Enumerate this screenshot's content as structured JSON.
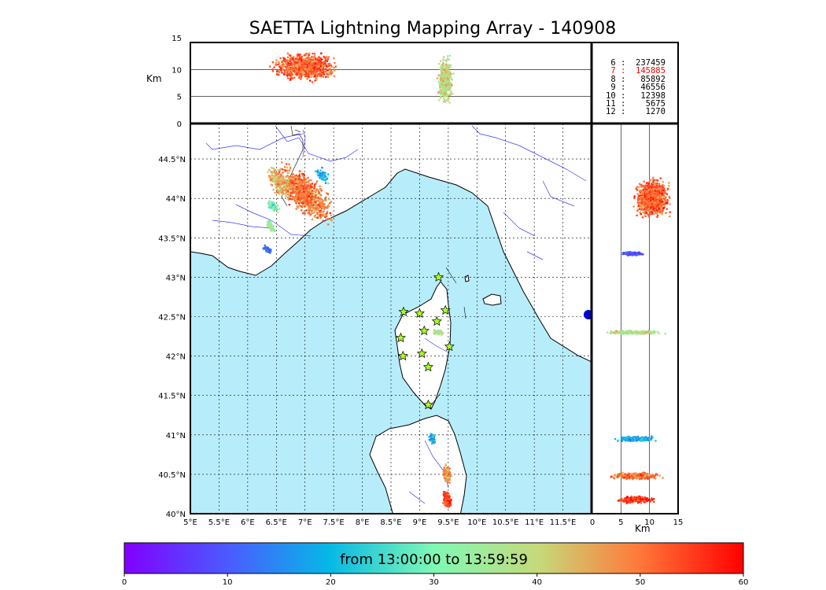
{
  "title": "SAETTA Lightning Mapping Array - 140908",
  "colors": {
    "sea": "#b7edfb",
    "land": "#ffffff",
    "river": "#3a3aff",
    "star_fill": "#aaff22",
    "highlight_stat": "#ff0000"
  },
  "stats": [
    {
      "k": "6",
      "v": "237459",
      "highlight": false
    },
    {
      "k": "7",
      "v": "145885",
      "highlight": true
    },
    {
      "k": "8",
      "v": "85892",
      "highlight": false
    },
    {
      "k": "9",
      "v": "46556",
      "highlight": false
    },
    {
      "k": "10",
      "v": "12398",
      "highlight": false
    },
    {
      "k": "11",
      "v": "5675",
      "highlight": false
    },
    {
      "k": "12",
      "v": "1270",
      "highlight": false
    }
  ],
  "chart_data": [
    {
      "type": "scatter",
      "name": "plan-view",
      "xlim": [
        5.0,
        12.0
      ],
      "ylim": [
        40.0,
        44.95
      ],
      "x_ticks": [
        5.0,
        5.5,
        6.0,
        6.5,
        7.0,
        7.5,
        8.0,
        8.5,
        9.0,
        9.5,
        10.0,
        10.5,
        11.0,
        11.5
      ],
      "x_tick_labels": [
        "5°E",
        "5.5°E",
        "6°E",
        "6.5°E",
        "7°E",
        "7.5°E",
        "8°E",
        "8.5°E",
        "9°E",
        "9.5°E",
        "10°E",
        "10.5°E",
        "11°E",
        "11.5°E"
      ],
      "y_ticks": [
        40.0,
        40.5,
        41.0,
        41.5,
        42.0,
        42.5,
        43.0,
        43.5,
        44.0,
        44.5
      ],
      "y_tick_labels": [
        "40°N",
        "40.5°N",
        "41°N",
        "41.5°N",
        "42°N",
        "42.5°N",
        "43°N",
        "43.5°N",
        "44°N",
        "44.5°N"
      ],
      "grid": true,
      "sensors": [
        {
          "lon": 9.33,
          "lat": 43.0
        },
        {
          "lon": 8.72,
          "lat": 42.56
        },
        {
          "lon": 9.0,
          "lat": 42.54
        },
        {
          "lon": 9.45,
          "lat": 42.58
        },
        {
          "lon": 9.3,
          "lat": 42.44
        },
        {
          "lon": 9.08,
          "lat": 42.32
        },
        {
          "lon": 8.67,
          "lat": 42.23
        },
        {
          "lon": 9.52,
          "lat": 42.12
        },
        {
          "lon": 9.04,
          "lat": 42.03
        },
        {
          "lon": 8.71,
          "lat": 42.0
        },
        {
          "lon": 9.15,
          "lat": 41.86
        },
        {
          "lon": 9.15,
          "lat": 41.38
        }
      ],
      "clusters": [
        {
          "lon": 7.0,
          "lat": 44.05,
          "span_lon": 0.55,
          "span_lat": 0.3,
          "time_min": 50,
          "n": 900
        },
        {
          "lon": 6.55,
          "lat": 44.2,
          "span_lon": 0.25,
          "span_lat": 0.2,
          "time_min": 45,
          "n": 200
        },
        {
          "lon": 6.45,
          "lat": 43.9,
          "span_lon": 0.12,
          "span_lat": 0.08,
          "time_min": 30,
          "n": 90
        },
        {
          "lon": 6.4,
          "lat": 43.65,
          "span_lon": 0.1,
          "span_lat": 0.08,
          "time_min": 35,
          "n": 60
        },
        {
          "lon": 6.35,
          "lat": 43.35,
          "span_lon": 0.1,
          "span_lat": 0.05,
          "time_min": 12,
          "n": 50
        },
        {
          "lon": 7.3,
          "lat": 44.3,
          "span_lon": 0.15,
          "span_lat": 0.1,
          "time_min": 20,
          "n": 60
        },
        {
          "lon": 9.32,
          "lat": 42.3,
          "span_lon": 0.1,
          "span_lat": 0.04,
          "time_min": 38,
          "n": 80
        },
        {
          "lon": 9.22,
          "lat": 40.95,
          "span_lon": 0.06,
          "span_lat": 0.08,
          "time_min": 20,
          "n": 60
        },
        {
          "lon": 9.48,
          "lat": 40.5,
          "span_lon": 0.08,
          "span_lat": 0.12,
          "time_min": 48,
          "n": 250
        },
        {
          "lon": 9.48,
          "lat": 40.18,
          "span_lon": 0.08,
          "span_lat": 0.12,
          "time_min": 55,
          "n": 250
        }
      ]
    },
    {
      "type": "scatter",
      "name": "lon-altitude",
      "xlim": [
        5.0,
        12.0
      ],
      "ylim": [
        0,
        15
      ],
      "y_ticks": [
        0,
        5,
        10,
        15
      ],
      "y_tick_labels": [
        "0",
        "5",
        "10",
        "15"
      ],
      "ylabel": "Km",
      "clusters": [
        {
          "x": 7.0,
          "alt": 10.5,
          "span_x": 0.65,
          "span_alt": 3.0,
          "time_min": 52,
          "n": 900
        },
        {
          "x": 9.45,
          "alt": 8.0,
          "span_x": 0.15,
          "span_alt": 5.0,
          "time_min": 40,
          "n": 500
        }
      ]
    },
    {
      "type": "scatter",
      "name": "altitude-lat",
      "xlim": [
        0,
        15
      ],
      "ylim": [
        40.0,
        44.95
      ],
      "x_ticks": [
        0,
        5,
        10,
        15
      ],
      "x_tick_labels": [
        "0",
        "5",
        "10",
        "15"
      ],
      "xlabel": "Km",
      "clusters": [
        {
          "alt": 10.5,
          "lat": 44.0,
          "span_alt": 3.5,
          "span_lat": 0.3,
          "time_min": 52,
          "n": 1000
        },
        {
          "alt": 7.0,
          "lat": 43.3,
          "span_alt": 2.5,
          "span_lat": 0.03,
          "time_min": 10,
          "n": 100
        },
        {
          "alt": 7.5,
          "lat": 42.3,
          "span_alt": 6.0,
          "span_lat": 0.03,
          "time_min": 38,
          "n": 250
        },
        {
          "alt": 7.5,
          "lat": 40.95,
          "span_alt": 4.0,
          "span_lat": 0.04,
          "time_min": 18,
          "n": 250
        },
        {
          "alt": 7.5,
          "lat": 40.48,
          "span_alt": 5.0,
          "span_lat": 0.05,
          "time_min": 50,
          "n": 350
        },
        {
          "alt": 7.5,
          "lat": 40.18,
          "span_alt": 4.0,
          "span_lat": 0.05,
          "time_min": 55,
          "n": 300
        }
      ]
    },
    {
      "type": "heatmap",
      "name": "colorbar",
      "label": "from 13:00:00 to 13:59:59",
      "range": [
        0,
        60
      ],
      "ticks": [
        0,
        10,
        20,
        30,
        40,
        50,
        60
      ],
      "tick_labels": [
        "0",
        "10",
        "20",
        "30",
        "40",
        "50",
        "60"
      ],
      "colormap": "rainbow"
    }
  ]
}
